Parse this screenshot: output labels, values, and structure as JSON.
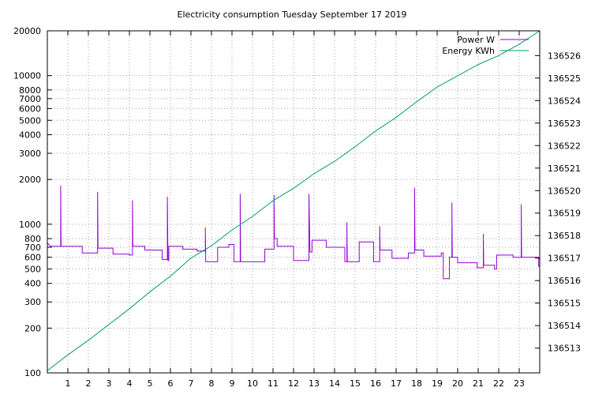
{
  "chart_data": {
    "type": "line",
    "title": "Electricity consumption Tuesday September 17 2019",
    "x": {
      "label": "",
      "range": [
        0,
        24
      ],
      "ticks": [
        1,
        2,
        3,
        4,
        5,
        6,
        7,
        8,
        9,
        10,
        11,
        12,
        13,
        14,
        15,
        16,
        17,
        18,
        19,
        20,
        21,
        22,
        23
      ]
    },
    "y_left": {
      "label": "",
      "scale": "log",
      "range": [
        100,
        20000
      ],
      "ticks": [
        100,
        200,
        300,
        400,
        500,
        600,
        700,
        800,
        1000,
        2000,
        3000,
        4000,
        5000,
        6000,
        7000,
        8000,
        10000,
        20000
      ]
    },
    "y_right": {
      "label": "",
      "scale": "linear",
      "range": [
        136511.9,
        136527.1
      ],
      "ticks": [
        136513,
        136514,
        136515,
        136516,
        136517,
        136518,
        136519,
        136520,
        136521,
        136522,
        136523,
        136524,
        136525,
        136526
      ]
    },
    "grid": true,
    "legend_position": "top-right",
    "series": [
      {
        "name": "Power W",
        "axis": "left",
        "color": "#9400d3",
        "points": [
          [
            0,
            750
          ],
          [
            0.15,
            710
          ],
          [
            0.65,
            710
          ],
          [
            0.65,
            1820
          ],
          [
            0.67,
            710
          ],
          [
            1.7,
            710
          ],
          [
            1.7,
            640
          ],
          [
            2.45,
            640
          ],
          [
            2.45,
            1650
          ],
          [
            2.47,
            690
          ],
          [
            3.2,
            690
          ],
          [
            3.2,
            630
          ],
          [
            4.0,
            630
          ],
          [
            4.0,
            620
          ],
          [
            4.15,
            620
          ],
          [
            4.15,
            1450
          ],
          [
            4.17,
            710
          ],
          [
            4.75,
            710
          ],
          [
            4.75,
            670
          ],
          [
            5.6,
            670
          ],
          [
            5.6,
            580
          ],
          [
            5.85,
            580
          ],
          [
            5.85,
            1530
          ],
          [
            5.88,
            570
          ],
          [
            5.92,
            570
          ],
          [
            5.92,
            710
          ],
          [
            6.6,
            710
          ],
          [
            6.6,
            680
          ],
          [
            7.3,
            680
          ],
          [
            7.3,
            660
          ],
          [
            7.7,
            660
          ],
          [
            7.7,
            950
          ],
          [
            7.72,
            560
          ],
          [
            8.3,
            560
          ],
          [
            8.3,
            700
          ],
          [
            8.85,
            700
          ],
          [
            8.85,
            730
          ],
          [
            9.1,
            730
          ],
          [
            9.1,
            560
          ],
          [
            9.4,
            560
          ],
          [
            9.4,
            1600
          ],
          [
            9.42,
            560
          ],
          [
            10.6,
            560
          ],
          [
            10.6,
            680
          ],
          [
            11.05,
            680
          ],
          [
            11.05,
            1570
          ],
          [
            11.07,
            800
          ],
          [
            11.2,
            800
          ],
          [
            11.2,
            710
          ],
          [
            12.0,
            710
          ],
          [
            12.0,
            570
          ],
          [
            12.75,
            570
          ],
          [
            12.75,
            1600
          ],
          [
            12.8,
            650
          ],
          [
            12.9,
            650
          ],
          [
            12.9,
            780
          ],
          [
            13.6,
            780
          ],
          [
            13.6,
            700
          ],
          [
            14.5,
            700
          ],
          [
            14.5,
            560
          ],
          [
            14.6,
            560
          ],
          [
            14.6,
            1030
          ],
          [
            14.62,
            560
          ],
          [
            15.2,
            560
          ],
          [
            15.2,
            760
          ],
          [
            15.9,
            760
          ],
          [
            15.9,
            560
          ],
          [
            16.2,
            560
          ],
          [
            16.2,
            970
          ],
          [
            16.22,
            670
          ],
          [
            16.8,
            670
          ],
          [
            16.8,
            590
          ],
          [
            17.6,
            590
          ],
          [
            17.6,
            640
          ],
          [
            17.9,
            640
          ],
          [
            17.9,
            1760
          ],
          [
            17.92,
            670
          ],
          [
            18.35,
            670
          ],
          [
            18.35,
            610
          ],
          [
            19.2,
            610
          ],
          [
            19.2,
            640
          ],
          [
            19.3,
            640
          ],
          [
            19.3,
            430
          ],
          [
            19.6,
            430
          ],
          [
            19.6,
            600
          ],
          [
            19.72,
            600
          ],
          [
            19.72,
            1400
          ],
          [
            19.74,
            600
          ],
          [
            20.0,
            600
          ],
          [
            20.0,
            550
          ],
          [
            20.95,
            550
          ],
          [
            20.95,
            510
          ],
          [
            21.25,
            510
          ],
          [
            21.25,
            860
          ],
          [
            21.27,
            530
          ],
          [
            21.8,
            530
          ],
          [
            21.8,
            500
          ],
          [
            21.9,
            500
          ],
          [
            21.9,
            620
          ],
          [
            22.7,
            620
          ],
          [
            22.7,
            600
          ],
          [
            23.1,
            600
          ],
          [
            23.1,
            1360
          ],
          [
            23.12,
            600
          ],
          [
            23.95,
            600
          ],
          [
            23.95,
            520
          ],
          [
            24,
            520
          ]
        ]
      },
      {
        "name": "Energy KWh",
        "axis": "right",
        "color": "#009e73",
        "points": [
          [
            0,
            136512.0
          ],
          [
            1,
            136512.7
          ],
          [
            2,
            136513.35
          ],
          [
            3,
            136514.05
          ],
          [
            4,
            136514.75
          ],
          [
            5,
            136515.5
          ],
          [
            6,
            136516.2
          ],
          [
            7,
            136517.0
          ],
          [
            8,
            136517.55
          ],
          [
            9,
            136518.25
          ],
          [
            10,
            136518.85
          ],
          [
            11,
            136519.55
          ],
          [
            12,
            136520.1
          ],
          [
            13,
            136520.75
          ],
          [
            14,
            136521.3
          ],
          [
            15,
            136521.95
          ],
          [
            16,
            136522.65
          ],
          [
            17,
            136523.25
          ],
          [
            18,
            136523.95
          ],
          [
            19,
            136524.6
          ],
          [
            20,
            136525.1
          ],
          [
            21,
            136525.6
          ],
          [
            22,
            136526.0
          ],
          [
            23,
            136526.5
          ],
          [
            24,
            136527.1
          ]
        ]
      }
    ]
  }
}
